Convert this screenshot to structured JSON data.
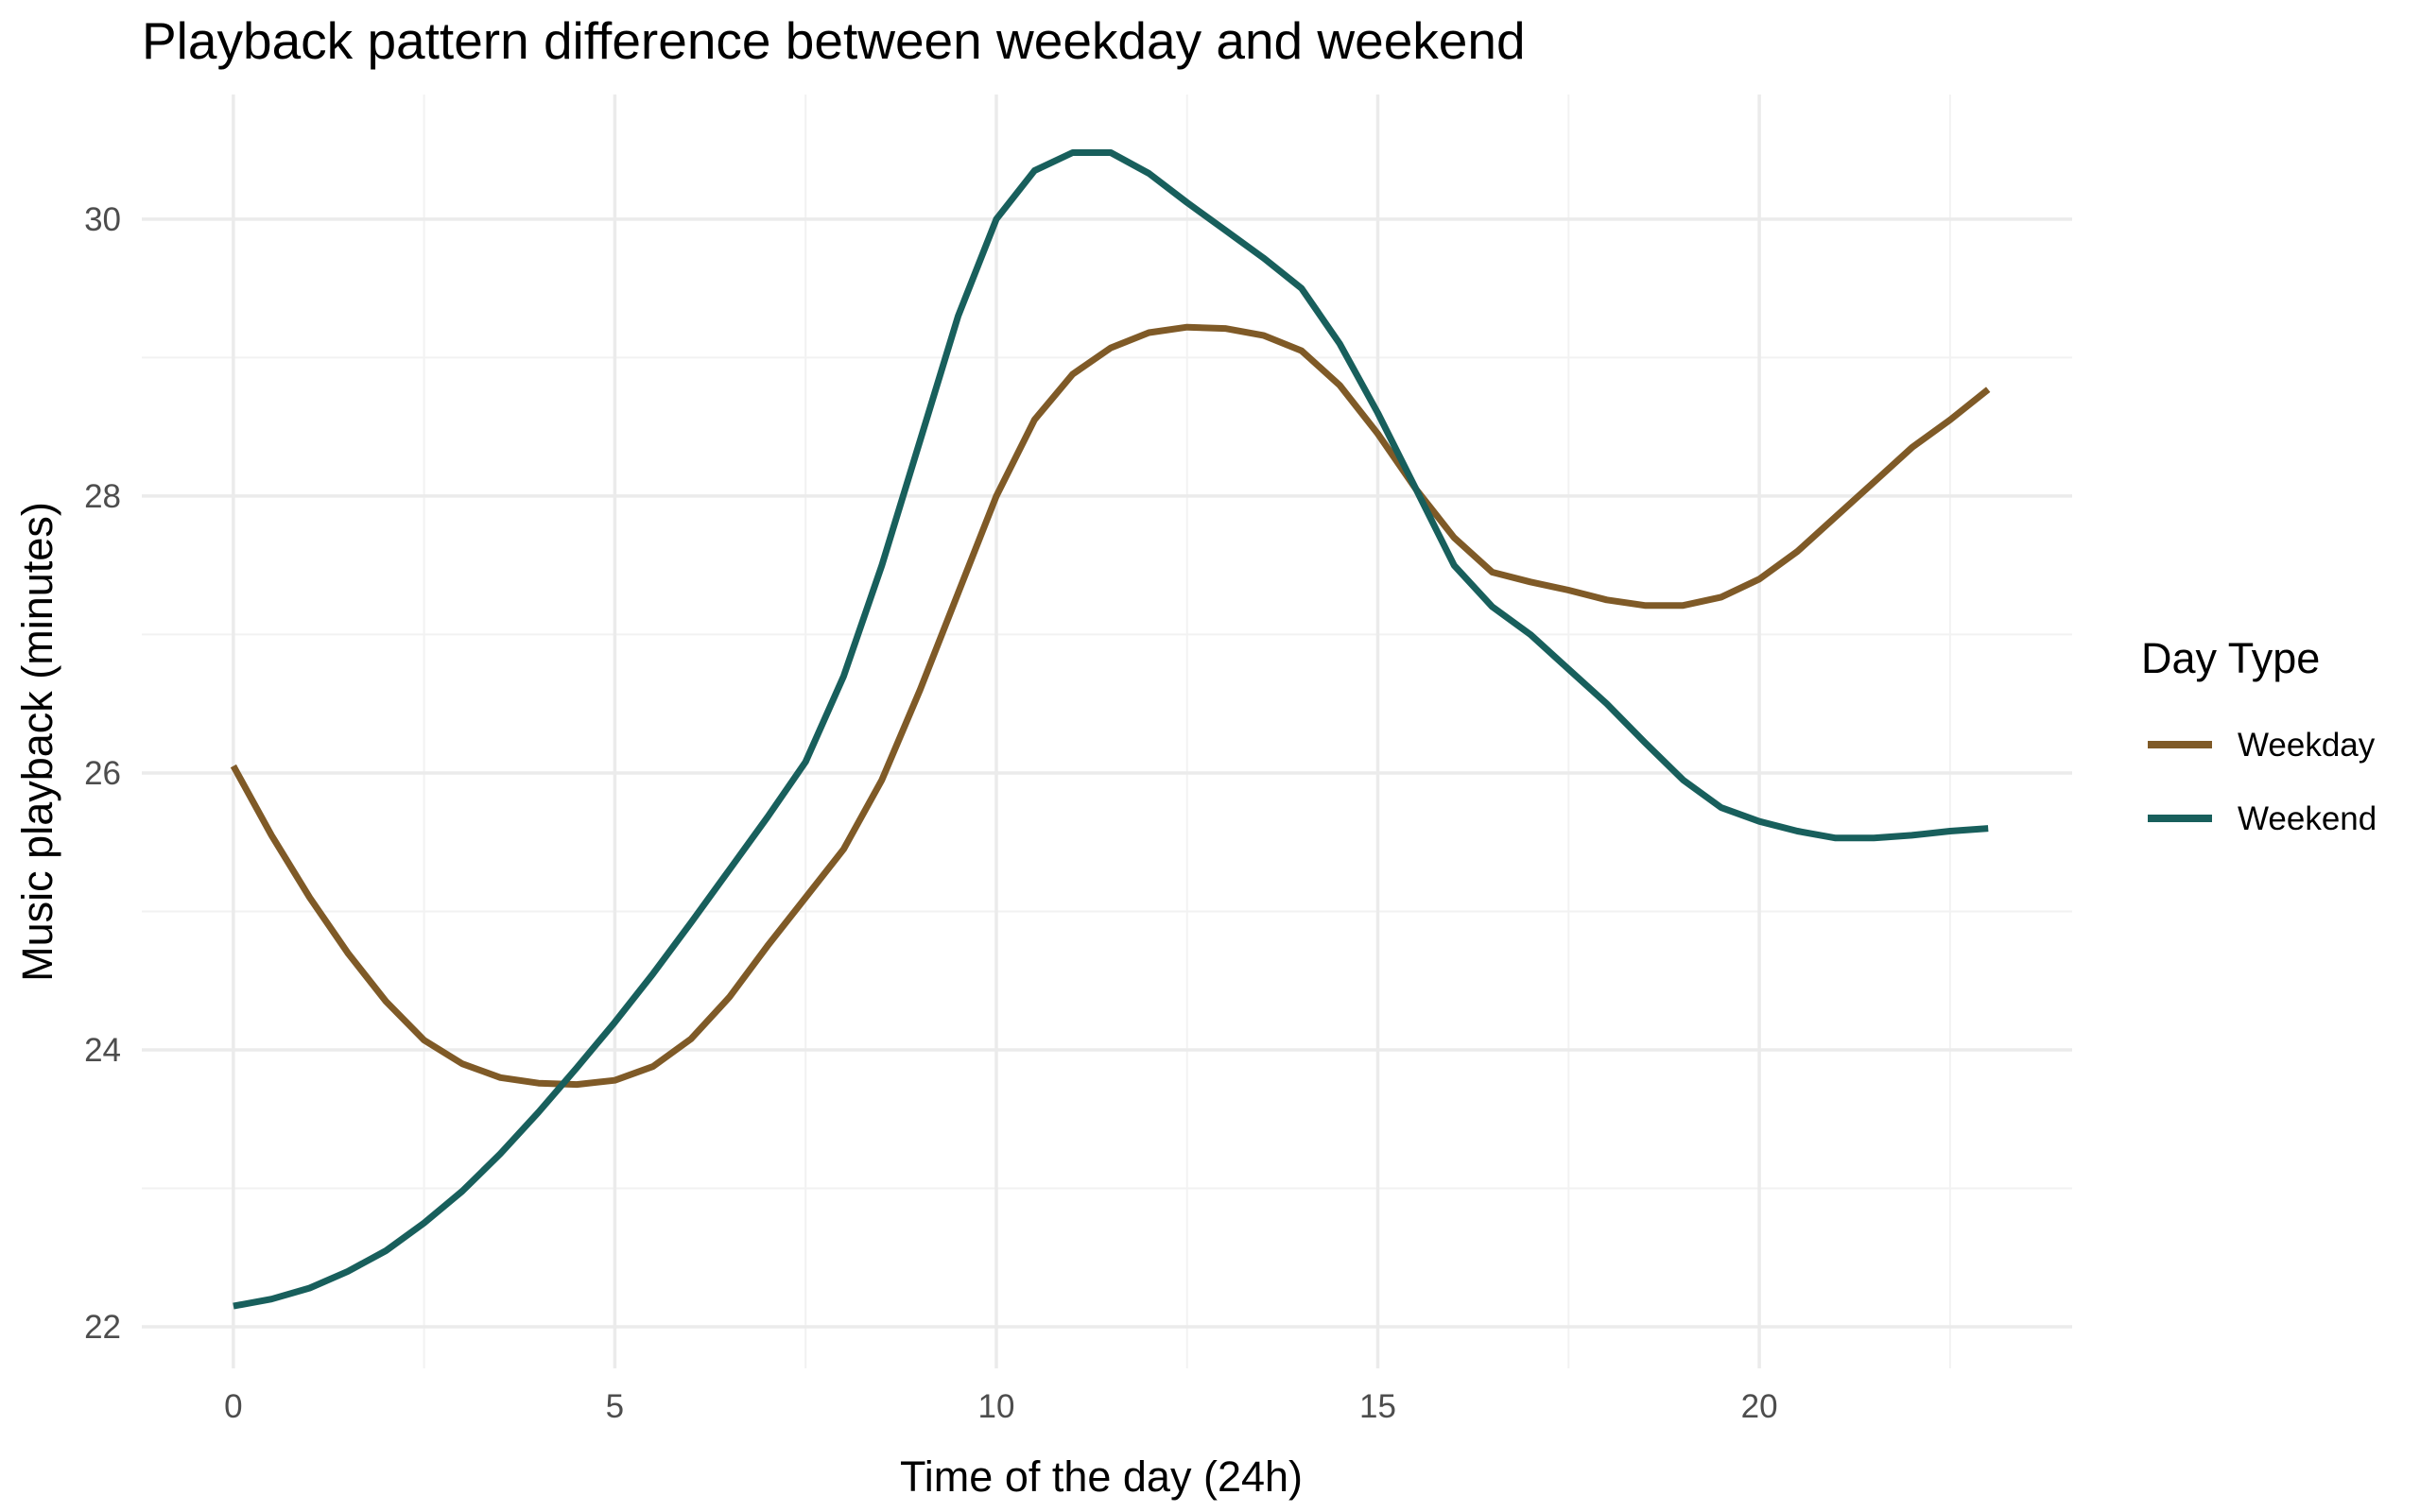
{
  "chart_data": {
    "type": "line",
    "title": "Playback pattern difference between weekday and weekend",
    "xlabel": "Time of the day (24h)",
    "ylabel": "Music playback (minutes)",
    "xlim": [
      -1.2,
      24.1
    ],
    "ylim": [
      21.7,
      30.9
    ],
    "x_ticks": [
      0,
      5,
      10,
      15,
      20
    ],
    "x_tick_labels": [
      "0",
      "5",
      "10",
      "15",
      "20"
    ],
    "x_minor_ticks": [
      2.5,
      7.5,
      12.5,
      17.5,
      22.5
    ],
    "y_ticks": [
      22,
      24,
      26,
      28,
      30
    ],
    "y_tick_labels": [
      "22",
      "24",
      "26",
      "28",
      "30"
    ],
    "y_minor_ticks": [
      23,
      25,
      27,
      29
    ],
    "grid": true,
    "legend": {
      "title": "Day Type",
      "placement": "right"
    },
    "series": [
      {
        "name": "Weekday",
        "color": "#7f5a27",
        "x": [
          0,
          0.5,
          1,
          1.5,
          2,
          2.5,
          3,
          3.5,
          4,
          4.5,
          5,
          5.5,
          6,
          6.5,
          7,
          7.5,
          8,
          8.5,
          9,
          9.5,
          10,
          10.5,
          11,
          11.5,
          12,
          12.5,
          13,
          13.5,
          14,
          14.5,
          15,
          15.5,
          16,
          16.5,
          17,
          17.5,
          18,
          18.5,
          19,
          19.5,
          20,
          20.5,
          21,
          21.5,
          22,
          22.5,
          23
        ],
        "values": [
          26.05,
          25.55,
          25.1,
          24.7,
          24.35,
          24.07,
          23.9,
          23.8,
          23.76,
          23.75,
          23.78,
          23.88,
          24.08,
          24.38,
          24.75,
          25.1,
          25.45,
          25.95,
          26.6,
          27.3,
          28.0,
          28.55,
          28.88,
          29.07,
          29.18,
          29.22,
          29.21,
          29.16,
          29.05,
          28.8,
          28.45,
          28.05,
          27.7,
          27.45,
          27.38,
          27.32,
          27.25,
          27.21,
          27.21,
          27.27,
          27.4,
          27.6,
          27.85,
          28.1,
          28.35,
          28.55,
          28.77
        ]
      },
      {
        "name": "Weekend",
        "color": "#185f5c",
        "x": [
          0,
          0.5,
          1,
          1.5,
          2,
          2.5,
          3,
          3.5,
          4,
          4.5,
          5,
          5.5,
          6,
          6.5,
          7,
          7.5,
          8,
          8.5,
          9,
          9.5,
          10,
          10.5,
          11,
          11.5,
          12,
          12.5,
          13,
          13.5,
          14,
          14.5,
          15,
          15.5,
          16,
          16.5,
          17,
          17.5,
          18,
          18.5,
          19,
          19.5,
          20,
          20.5,
          21,
          21.5,
          22,
          22.5,
          23
        ],
        "values": [
          22.15,
          22.2,
          22.28,
          22.4,
          22.55,
          22.75,
          22.98,
          23.25,
          23.55,
          23.87,
          24.2,
          24.55,
          24.92,
          25.3,
          25.68,
          26.08,
          26.7,
          27.5,
          28.4,
          29.3,
          30.0,
          30.35,
          30.48,
          30.48,
          30.33,
          30.12,
          29.92,
          29.72,
          29.5,
          29.1,
          28.6,
          28.05,
          27.5,
          27.2,
          27.0,
          26.75,
          26.5,
          26.22,
          25.95,
          25.75,
          25.65,
          25.58,
          25.53,
          25.53,
          25.55,
          25.58,
          25.6
        ]
      }
    ]
  }
}
